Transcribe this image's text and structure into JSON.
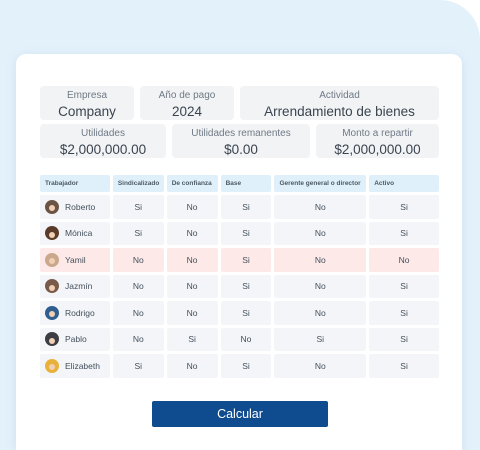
{
  "summary": {
    "empresa": {
      "label": "Empresa",
      "value": "Company"
    },
    "anio": {
      "label": "Año de pago",
      "value": "2024"
    },
    "actividad": {
      "label": "Actividad",
      "value": "Arrendamiento de bienes"
    },
    "utilidades": {
      "label": "Utilidades",
      "value": "$2,000,000.00"
    },
    "remanentes": {
      "label": "Utilidades remanentes",
      "value": "$0.00"
    },
    "monto": {
      "label": "Monto a repartir",
      "value": "$2,000,000.00"
    }
  },
  "table": {
    "headers": [
      "Trabajador",
      "Sindicalizado",
      "De confianza",
      "Base",
      "Gerente general o director",
      "Activo"
    ],
    "rows": [
      {
        "name": "Roberto",
        "sindicalizado": "Si",
        "confianza": "No",
        "base": "Si",
        "gerente": "No",
        "activo": "Si",
        "avatar_color": "#6b5444"
      },
      {
        "name": "Mónica",
        "sindicalizado": "Si",
        "confianza": "No",
        "base": "Si",
        "gerente": "No",
        "activo": "Si",
        "avatar_color": "#5a3b2a"
      },
      {
        "name": "Yamil",
        "sindicalizado": "No",
        "confianza": "No",
        "base": "Si",
        "gerente": "No",
        "activo": "No",
        "avatar_color": "#c9a88c"
      },
      {
        "name": "Jazmín",
        "sindicalizado": "No",
        "confianza": "No",
        "base": "Si",
        "gerente": "No",
        "activo": "Si",
        "avatar_color": "#7a5a48"
      },
      {
        "name": "Rodrigo",
        "sindicalizado": "No",
        "confianza": "No",
        "base": "Si",
        "gerente": "No",
        "activo": "Si",
        "avatar_color": "#2f5f8f"
      },
      {
        "name": "Pablo",
        "sindicalizado": "No",
        "confianza": "Si",
        "base": "No",
        "gerente": "Si",
        "activo": "Si",
        "avatar_color": "#3c3c44"
      },
      {
        "name": "Elizabeth",
        "sindicalizado": "Si",
        "confianza": "No",
        "base": "Si",
        "gerente": "No",
        "activo": "Si",
        "avatar_color": "#e8b13a"
      }
    ],
    "highlighted_row": 2,
    "highlight_color": "#fde9e8"
  },
  "actions": {
    "calcular_label": "Calcular"
  },
  "colors": {
    "primary_button": "#0e4b8f",
    "header_bg": "#dff0fa",
    "page_bg": "#e3f1fb"
  }
}
